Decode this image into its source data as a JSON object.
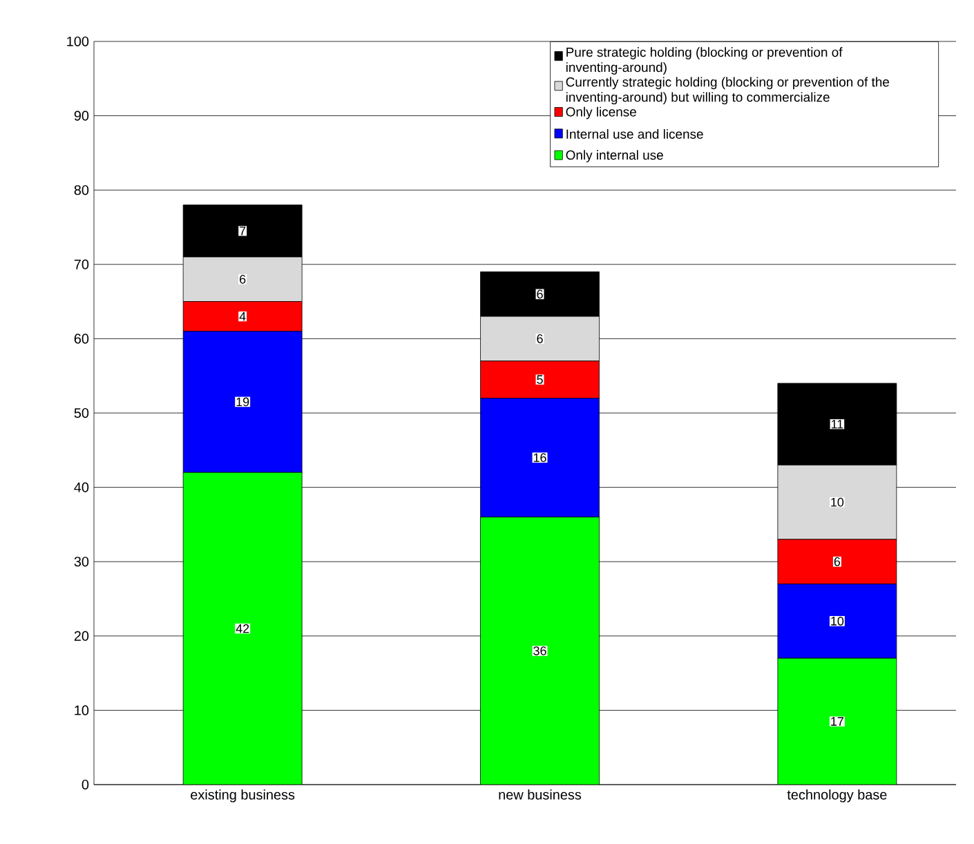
{
  "chart_data": {
    "type": "bar",
    "stacked": true,
    "categories": [
      "existing business",
      "new business",
      "technology base"
    ],
    "series": [
      {
        "name": "Only internal use",
        "color": "#00ff00",
        "values": [
          42,
          36,
          17
        ]
      },
      {
        "name": "Internal use and license",
        "color": "#0000ff",
        "values": [
          19,
          16,
          10
        ]
      },
      {
        "name": "Only license",
        "color": "#ff0000",
        "values": [
          4,
          5,
          6
        ]
      },
      {
        "name": "Currently strategic holding (blocking or prevention of the inventing-around) but willing to commercialize",
        "color": "#d9d9d9",
        "values": [
          6,
          6,
          10
        ]
      },
      {
        "name": "Pure strategic holding (blocking or prevention of inventing-around)",
        "color": "#000000",
        "values": [
          7,
          6,
          11
        ]
      }
    ],
    "ylim": [
      0,
      100
    ],
    "yticks": [
      0,
      10,
      20,
      30,
      40,
      50,
      60,
      70,
      80,
      90,
      100
    ],
    "grid": "y",
    "legend": "top right",
    "data_labels": true
  }
}
